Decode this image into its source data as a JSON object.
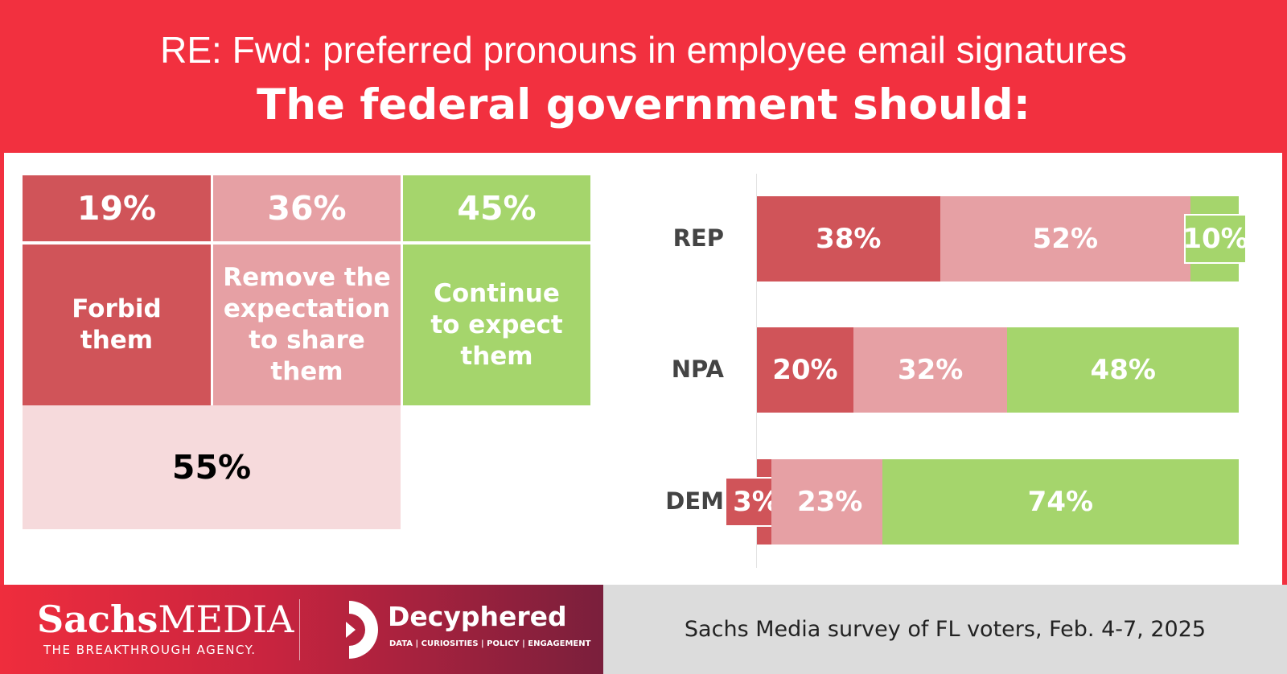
{
  "header": {
    "subject": "RE: Fwd: preferred pronouns in employee email signatures",
    "title": "The federal government should:"
  },
  "colors": {
    "header_red": "#f2303f",
    "forbid": "#d05459",
    "remove": "#e6a0a4",
    "continue": "#a5d56c",
    "combined": "#f6dadc",
    "footer_gray": "#dcdcdc"
  },
  "chart_data": [
    {
      "type": "table",
      "cells": [
        {
          "value": 19,
          "value_label": "19%",
          "label": "Forbid them"
        },
        {
          "value": 36,
          "value_label": "36%",
          "label": "Remove the expectation to share them"
        },
        {
          "value": 45,
          "value_label": "45%",
          "label": "Continue to expect them"
        }
      ],
      "combined": {
        "value": 55,
        "value_label": "55%"
      }
    },
    {
      "type": "bar",
      "orientation": "horizontal",
      "stacked": true,
      "categories": [
        "REP",
        "NPA",
        "DEM"
      ],
      "series": [
        {
          "values": [
            38,
            20,
            3
          ],
          "labels": [
            "38%",
            "20%",
            "3%"
          ]
        },
        {
          "values": [
            52,
            32,
            23
          ],
          "labels": [
            "52%",
            "32%",
            "23%"
          ]
        },
        {
          "values": [
            10,
            48,
            74
          ],
          "labels": [
            "10%",
            "48%",
            "74%"
          ]
        }
      ],
      "xlim": [
        0,
        100
      ]
    }
  ],
  "footer": {
    "brand1_bold": "Sachs",
    "brand1_rest": "MEDIA",
    "brand1_tagline": "THE BREAKTHROUGH AGENCY.",
    "brand2_name": "Decyphered",
    "brand2_tagline": "DATA | CURIOSITIES | POLICY | ENGAGEMENT",
    "source": "Sachs Media survey of FL voters, Feb. 4-7, 2025"
  }
}
